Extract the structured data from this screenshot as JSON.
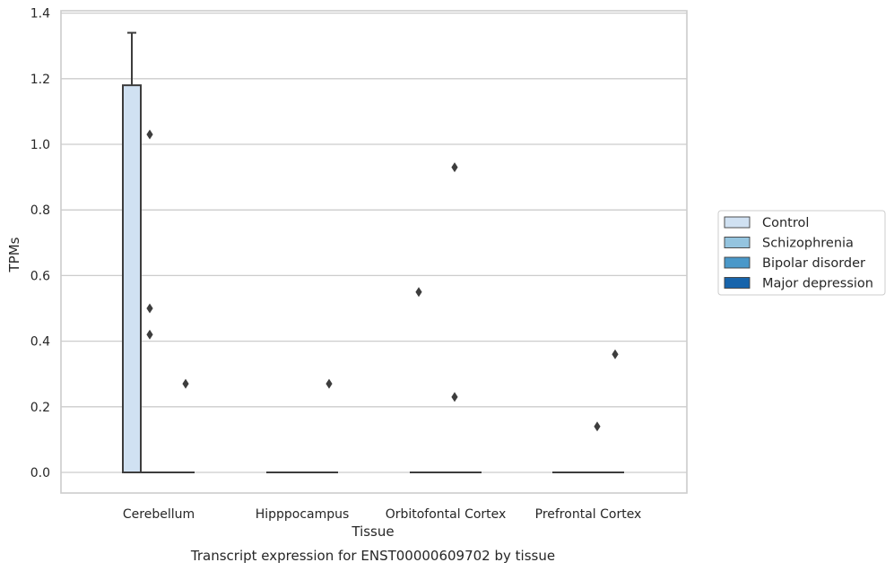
{
  "chart_data": {
    "type": "box",
    "xlabel": "Tissue",
    "ylabel": "TPMs",
    "caption": "Transcript expression for ENST00000609702 by tissue",
    "categories": [
      "Cerebellum",
      "Hipppocampus",
      "Orbitofontal Cortex",
      "Prefrontal Cortex"
    ],
    "ylim": [
      -0.065,
      1.41
    ],
    "yticks": [
      "0.0",
      "0.2",
      "0.4",
      "0.6",
      "0.8",
      "1.0",
      "1.2",
      "1.4"
    ],
    "ytick_values": [
      0.0,
      0.2,
      0.4,
      0.6,
      0.8,
      1.0,
      1.2,
      1.4
    ],
    "grid": "horizontal",
    "legend_position": "right",
    "colors": {
      "Control": "#d0e1f2",
      "Schizophrenia": "#94c4df",
      "Bipolar disorder": "#4a98c9",
      "Major depression": "#1764ab",
      "box_edge": "#3d3d3d",
      "grid": "#cccccc",
      "frame": "#cccccc"
    },
    "series": [
      {
        "name": "Control",
        "boxes": [
          {
            "category": "Cerebellum",
            "min": 0.0,
            "q1": 0.0,
            "median": 0.0,
            "q3": 1.18,
            "max": 1.34,
            "outliers": []
          },
          {
            "category": "Hipppocampus",
            "min": 0.0,
            "q1": 0.0,
            "median": 0.0,
            "q3": 0.0,
            "max": 0.0,
            "outliers": []
          },
          {
            "category": "Orbitofontal Cortex",
            "min": 0.0,
            "q1": 0.0,
            "median": 0.0,
            "q3": 0.0,
            "max": 0.0,
            "outliers": [
              0.55
            ]
          },
          {
            "category": "Prefrontal Cortex",
            "min": 0.0,
            "q1": 0.0,
            "median": 0.0,
            "q3": 0.0,
            "max": 0.0,
            "outliers": []
          }
        ]
      },
      {
        "name": "Schizophrenia",
        "boxes": [
          {
            "category": "Cerebellum",
            "min": 0.0,
            "q1": 0.0,
            "median": 0.0,
            "q3": 0.0,
            "max": 0.0,
            "outliers": [
              1.03,
              0.5,
              0.42
            ]
          },
          {
            "category": "Hipppocampus",
            "min": 0.0,
            "q1": 0.0,
            "median": 0.0,
            "q3": 0.0,
            "max": 0.0,
            "outliers": []
          },
          {
            "category": "Orbitofontal Cortex",
            "min": 0.0,
            "q1": 0.0,
            "median": 0.0,
            "q3": 0.0,
            "max": 0.0,
            "outliers": []
          },
          {
            "category": "Prefrontal Cortex",
            "min": 0.0,
            "q1": 0.0,
            "median": 0.0,
            "q3": 0.0,
            "max": 0.0,
            "outliers": []
          }
        ]
      },
      {
        "name": "Bipolar disorder",
        "boxes": [
          {
            "category": "Cerebellum",
            "min": 0.0,
            "q1": 0.0,
            "median": 0.0,
            "q3": 0.0,
            "max": 0.0,
            "outliers": []
          },
          {
            "category": "Hipppocampus",
            "min": 0.0,
            "q1": 0.0,
            "median": 0.0,
            "q3": 0.0,
            "max": 0.0,
            "outliers": []
          },
          {
            "category": "Orbitofontal Cortex",
            "min": 0.0,
            "q1": 0.0,
            "median": 0.0,
            "q3": 0.0,
            "max": 0.0,
            "outliers": [
              0.93,
              0.23
            ]
          },
          {
            "category": "Prefrontal Cortex",
            "min": 0.0,
            "q1": 0.0,
            "median": 0.0,
            "q3": 0.0,
            "max": 0.0,
            "outliers": [
              0.14
            ]
          }
        ]
      },
      {
        "name": "Major depression",
        "boxes": [
          {
            "category": "Cerebellum",
            "min": 0.0,
            "q1": 0.0,
            "median": 0.0,
            "q3": 0.0,
            "max": 0.0,
            "outliers": [
              0.27
            ]
          },
          {
            "category": "Hipppocampus",
            "min": 0.0,
            "q1": 0.0,
            "median": 0.0,
            "q3": 0.0,
            "max": 0.0,
            "outliers": [
              0.27
            ]
          },
          {
            "category": "Orbitofontal Cortex",
            "min": 0.0,
            "q1": 0.0,
            "median": 0.0,
            "q3": 0.0,
            "max": 0.0,
            "outliers": []
          },
          {
            "category": "Prefrontal Cortex",
            "min": 0.0,
            "q1": 0.0,
            "median": 0.0,
            "q3": 0.0,
            "max": 0.0,
            "outliers": [
              0.36
            ]
          }
        ]
      }
    ]
  }
}
